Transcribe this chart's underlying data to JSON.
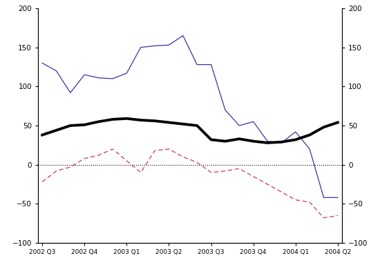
{
  "x_labels": [
    "2002 Q3",
    "2002 Q4",
    "2003 Q1",
    "2003 Q2",
    "2003 Q3",
    "2003 Q4",
    "2004 Q1",
    "2004 Q2"
  ],
  "x_ticks": [
    0,
    3,
    6,
    9,
    12,
    15,
    18,
    21
  ],
  "blue_line": {
    "x": [
      0,
      1,
      2,
      3,
      4,
      5,
      6,
      7,
      8,
      9,
      10,
      11,
      12,
      13,
      14,
      15,
      16,
      17,
      18,
      19,
      20,
      21
    ],
    "y": [
      130,
      120,
      92,
      115,
      111,
      110,
      117,
      150,
      152,
      153,
      165,
      128,
      128,
      70,
      50,
      55,
      30,
      28,
      42,
      20,
      -42,
      -42
    ]
  },
  "black_line": {
    "x": [
      0,
      1,
      2,
      3,
      4,
      5,
      6,
      7,
      8,
      9,
      10,
      11,
      12,
      13,
      14,
      15,
      16,
      17,
      18,
      19,
      20,
      21
    ],
    "y": [
      38,
      44,
      50,
      51,
      55,
      58,
      59,
      57,
      56,
      54,
      52,
      50,
      32,
      30,
      33,
      30,
      28,
      29,
      32,
      38,
      48,
      54
    ]
  },
  "red_dashed_line": {
    "x": [
      0,
      1,
      2,
      3,
      4,
      5,
      6,
      7,
      8,
      9,
      10,
      11,
      12,
      13,
      14,
      15,
      16,
      17,
      18,
      19,
      20,
      21
    ],
    "y": [
      -22,
      -8,
      -3,
      8,
      12,
      20,
      5,
      -10,
      18,
      20,
      10,
      3,
      -10,
      -8,
      -5,
      -15,
      -25,
      -35,
      -45,
      -48,
      -68,
      -65
    ]
  },
  "ylim": [
    -100,
    200
  ],
  "yticks": [
    -100,
    -50,
    0,
    50,
    100,
    150,
    200
  ],
  "zero_line_y": 0,
  "blue_color": "#3333aa",
  "black_color": "#000000",
  "red_color": "#cc3366",
  "bg_color": "#ffffff",
  "fig_width": 5.5,
  "fig_height": 4.0
}
